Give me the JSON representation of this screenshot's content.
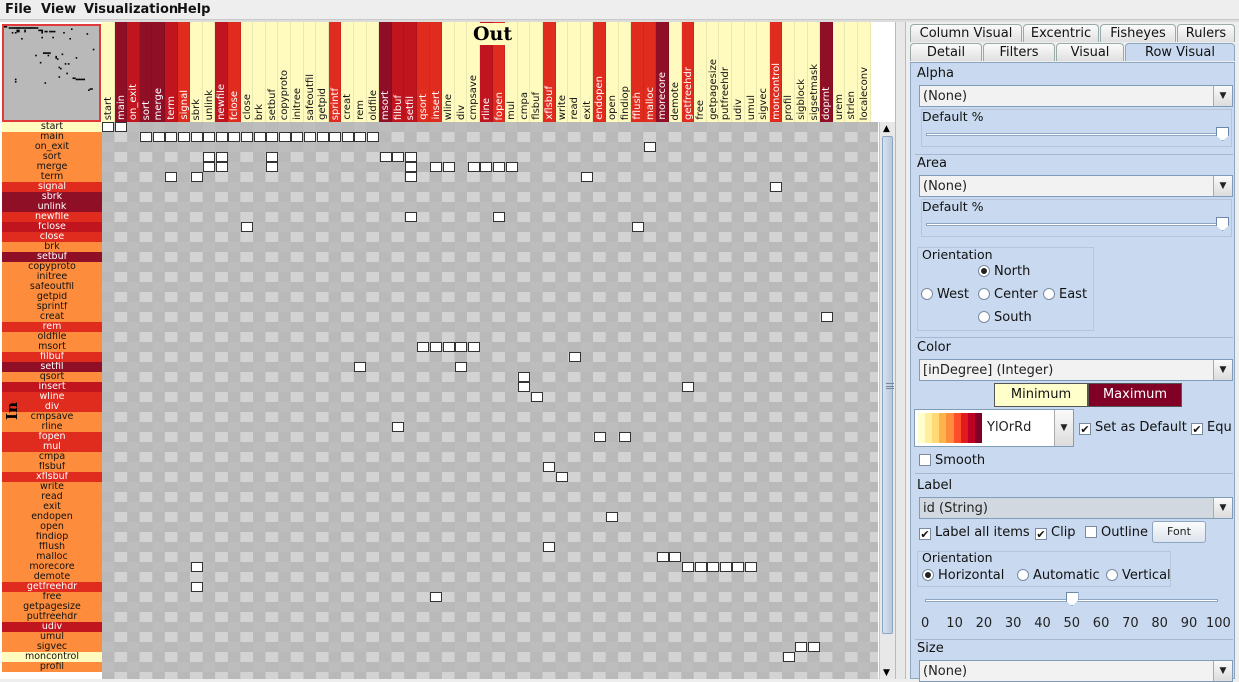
{
  "menu": {
    "items": [
      "File",
      "View",
      "Visualization",
      "Help"
    ]
  },
  "matrix": {
    "out_label": "Out",
    "in_label": "In",
    "columns": [
      {
        "name": "start",
        "color": "#fffbbf"
      },
      {
        "name": "main",
        "color": "#8f0f27"
      },
      {
        "name": "on_exit",
        "color": "#c0141f"
      },
      {
        "name": "sort",
        "color": "#8f0f27"
      },
      {
        "name": "merge",
        "color": "#8f0f27"
      },
      {
        "name": "term",
        "color": "#c0141f"
      },
      {
        "name": "signal",
        "color": "#e02b1f"
      },
      {
        "name": "sbrk",
        "color": "#fffbbf"
      },
      {
        "name": "unlink",
        "color": "#fffbbf"
      },
      {
        "name": "newfile",
        "color": "#c0141f"
      },
      {
        "name": "fclose",
        "color": "#e02b1f"
      },
      {
        "name": "close",
        "color": "#fffbbf"
      },
      {
        "name": "brk",
        "color": "#fffbbf"
      },
      {
        "name": "setbuf",
        "color": "#fffbbf"
      },
      {
        "name": "copyproto",
        "color": "#fffbbf"
      },
      {
        "name": "initree",
        "color": "#fffbbf"
      },
      {
        "name": "safeoutfil",
        "color": "#fffbbf"
      },
      {
        "name": "getpid",
        "color": "#fffbbf"
      },
      {
        "name": "sprintf",
        "color": "#e02b1f"
      },
      {
        "name": "creat",
        "color": "#fffbbf"
      },
      {
        "name": "rem",
        "color": "#fffbbf"
      },
      {
        "name": "oldfile",
        "color": "#fffbbf"
      },
      {
        "name": "msort",
        "color": "#8f0f27"
      },
      {
        "name": "filbuf",
        "color": "#c0141f"
      },
      {
        "name": "setfil",
        "color": "#c0141f"
      },
      {
        "name": "qsort",
        "color": "#e02b1f"
      },
      {
        "name": "insert",
        "color": "#e02b1f"
      },
      {
        "name": "wline",
        "color": "#fffbbf"
      },
      {
        "name": "div",
        "color": "#fffbbf"
      },
      {
        "name": "cmpsave",
        "color": "#fffbbf"
      },
      {
        "name": "rline",
        "color": "#c0141f"
      },
      {
        "name": "fopen",
        "color": "#e02b1f"
      },
      {
        "name": "mul",
        "color": "#fffbbf"
      },
      {
        "name": "cmpa",
        "color": "#fffbbf"
      },
      {
        "name": "flsbuf",
        "color": "#fffbbf"
      },
      {
        "name": "xflsbuf",
        "color": "#e02b1f"
      },
      {
        "name": "write",
        "color": "#fffbbf"
      },
      {
        "name": "read",
        "color": "#fffbbf"
      },
      {
        "name": "exit",
        "color": "#fffbbf"
      },
      {
        "name": "endopen",
        "color": "#e02b1f"
      },
      {
        "name": "open",
        "color": "#fffbbf"
      },
      {
        "name": "findiop",
        "color": "#fffbbf"
      },
      {
        "name": "fflush",
        "color": "#e02b1f"
      },
      {
        "name": "malloc",
        "color": "#e02b1f"
      },
      {
        "name": "morecore",
        "color": "#8f0f27"
      },
      {
        "name": "demote",
        "color": "#fffbbf"
      },
      {
        "name": "getfreehdr",
        "color": "#e02b1f"
      },
      {
        "name": "free",
        "color": "#fffbbf"
      },
      {
        "name": "getpagesize",
        "color": "#fffbbf"
      },
      {
        "name": "putfreehdr",
        "color": "#fffbbf"
      },
      {
        "name": "udiv",
        "color": "#fffbbf"
      },
      {
        "name": "umul",
        "color": "#fffbbf"
      },
      {
        "name": "sigvec",
        "color": "#fffbbf"
      },
      {
        "name": "moncontrol",
        "color": "#e02b1f"
      },
      {
        "name": "profil",
        "color": "#fffbbf"
      },
      {
        "name": "sigblock",
        "color": "#fffbbf"
      },
      {
        "name": "sigsetmask",
        "color": "#fffbbf"
      },
      {
        "name": "doprnt",
        "color": "#8f0f27"
      },
      {
        "name": "urem",
        "color": "#fffbbf"
      },
      {
        "name": "strlen",
        "color": "#fffbbf"
      },
      {
        "name": "localeconv",
        "color": "#fffbbf"
      }
    ],
    "rows": [
      {
        "name": "start",
        "color": "#fffbbf"
      },
      {
        "name": "main",
        "color": "#fd8d3c"
      },
      {
        "name": "on_exit",
        "color": "#fd8d3c"
      },
      {
        "name": "sort",
        "color": "#fd8d3c"
      },
      {
        "name": "merge",
        "color": "#fd8d3c"
      },
      {
        "name": "term",
        "color": "#fd8d3c"
      },
      {
        "name": "signal",
        "color": "#e02b1f"
      },
      {
        "name": "sbrk",
        "color": "#8f0f27"
      },
      {
        "name": "unlink",
        "color": "#8f0f27"
      },
      {
        "name": "newfile",
        "color": "#e02b1f"
      },
      {
        "name": "fclose",
        "color": "#c0141f"
      },
      {
        "name": "close",
        "color": "#e02b1f"
      },
      {
        "name": "brk",
        "color": "#fd8d3c"
      },
      {
        "name": "setbuf",
        "color": "#8f0f27"
      },
      {
        "name": "copyproto",
        "color": "#fd8d3c"
      },
      {
        "name": "initree",
        "color": "#fd8d3c"
      },
      {
        "name": "safeoutfil",
        "color": "#fd8d3c"
      },
      {
        "name": "getpid",
        "color": "#fd8d3c"
      },
      {
        "name": "sprintf",
        "color": "#fd8d3c"
      },
      {
        "name": "creat",
        "color": "#fd8d3c"
      },
      {
        "name": "rem",
        "color": "#e02b1f"
      },
      {
        "name": "oldfile",
        "color": "#fd8d3c"
      },
      {
        "name": "msort",
        "color": "#fd8d3c"
      },
      {
        "name": "filbuf",
        "color": "#e02b1f"
      },
      {
        "name": "setfil",
        "color": "#8f0f27"
      },
      {
        "name": "qsort",
        "color": "#fd8d3c"
      },
      {
        "name": "insert",
        "color": "#c0141f"
      },
      {
        "name": "wline",
        "color": "#e02b1f"
      },
      {
        "name": "div",
        "color": "#e02b1f"
      },
      {
        "name": "cmpsave",
        "color": "#fd8d3c"
      },
      {
        "name": "rline",
        "color": "#fd8d3c"
      },
      {
        "name": "fopen",
        "color": "#e02b1f"
      },
      {
        "name": "mul",
        "color": "#e02b1f"
      },
      {
        "name": "cmpa",
        "color": "#fd8d3c"
      },
      {
        "name": "flsbuf",
        "color": "#fd8d3c"
      },
      {
        "name": "xflsbuf",
        "color": "#e02b1f"
      },
      {
        "name": "write",
        "color": "#fd8d3c"
      },
      {
        "name": "read",
        "color": "#fd8d3c"
      },
      {
        "name": "exit",
        "color": "#fd8d3c"
      },
      {
        "name": "endopen",
        "color": "#fd8d3c"
      },
      {
        "name": "open",
        "color": "#fd8d3c"
      },
      {
        "name": "findiop",
        "color": "#fd8d3c"
      },
      {
        "name": "fflush",
        "color": "#fd8d3c"
      },
      {
        "name": "malloc",
        "color": "#fd8d3c"
      },
      {
        "name": "morecore",
        "color": "#fd8d3c"
      },
      {
        "name": "demote",
        "color": "#fd8d3c"
      },
      {
        "name": "getfreehdr",
        "color": "#e02b1f"
      },
      {
        "name": "free",
        "color": "#fd8d3c"
      },
      {
        "name": "getpagesize",
        "color": "#fd8d3c"
      },
      {
        "name": "putfreehdr",
        "color": "#fd8d3c"
      },
      {
        "name": "udiv",
        "color": "#c0141f"
      },
      {
        "name": "umul",
        "color": "#fd8d3c"
      },
      {
        "name": "sigvec",
        "color": "#fd8d3c"
      },
      {
        "name": "moncontrol",
        "color": "#fffbbf"
      },
      {
        "name": "profil",
        "color": "#fd8d3c"
      }
    ],
    "edges": [
      [
        0,
        0
      ],
      [
        0,
        1
      ],
      [
        1,
        3
      ],
      [
        1,
        4
      ],
      [
        1,
        5
      ],
      [
        1,
        6
      ],
      [
        1,
        7
      ],
      [
        1,
        8
      ],
      [
        1,
        9
      ],
      [
        1,
        10
      ],
      [
        1,
        11
      ],
      [
        1,
        12
      ],
      [
        1,
        13
      ],
      [
        1,
        14
      ],
      [
        1,
        15
      ],
      [
        1,
        16
      ],
      [
        1,
        17
      ],
      [
        1,
        18
      ],
      [
        1,
        19
      ],
      [
        1,
        20
      ],
      [
        1,
        21
      ],
      [
        2,
        43
      ],
      [
        3,
        8
      ],
      [
        3,
        9
      ],
      [
        3,
        13
      ],
      [
        3,
        22
      ],
      [
        3,
        23
      ],
      [
        3,
        24
      ],
      [
        4,
        8
      ],
      [
        4,
        9
      ],
      [
        4,
        13
      ],
      [
        4,
        24
      ],
      [
        4,
        26
      ],
      [
        4,
        27
      ],
      [
        4,
        29
      ],
      [
        4,
        30
      ],
      [
        4,
        31
      ],
      [
        4,
        32
      ],
      [
        5,
        5
      ],
      [
        5,
        7
      ],
      [
        5,
        24
      ],
      [
        5,
        38
      ],
      [
        6,
        53
      ],
      [
        9,
        24
      ],
      [
        9,
        31
      ],
      [
        10,
        11
      ],
      [
        10,
        42
      ],
      [
        19,
        57
      ],
      [
        22,
        25
      ],
      [
        22,
        26
      ],
      [
        22,
        27
      ],
      [
        22,
        28
      ],
      [
        22,
        29
      ],
      [
        23,
        37
      ],
      [
        24,
        20
      ],
      [
        24,
        28
      ],
      [
        25,
        33
      ],
      [
        26,
        33
      ],
      [
        26,
        46
      ],
      [
        27,
        34
      ],
      [
        30,
        23
      ],
      [
        31,
        39
      ],
      [
        31,
        41
      ],
      [
        34,
        35
      ],
      [
        35,
        36
      ],
      [
        39,
        40
      ],
      [
        42,
        35
      ],
      [
        43,
        44
      ],
      [
        43,
        45
      ],
      [
        44,
        7
      ],
      [
        44,
        46
      ],
      [
        44,
        47
      ],
      [
        44,
        48
      ],
      [
        44,
        49
      ],
      [
        44,
        50
      ],
      [
        44,
        51
      ],
      [
        46,
        7
      ],
      [
        47,
        26
      ],
      [
        52,
        55
      ],
      [
        52,
        56
      ],
      [
        53,
        54
      ]
    ]
  },
  "tabs": {
    "row1": [
      "Column Visual",
      "Excentric",
      "Fisheyes",
      "Rulers"
    ],
    "row2": [
      "Detail",
      "Filters",
      "Visual",
      "Row Visual"
    ],
    "active": "Row Visual"
  },
  "panel": {
    "alpha": {
      "title": "Alpha",
      "value": "(None)",
      "default_label": "Default %",
      "default_percent": 100
    },
    "area": {
      "title": "Area",
      "value": "(None)",
      "default_label": "Default %",
      "default_percent": 100
    },
    "orientation": {
      "title": "Orientation",
      "north": "North",
      "west": "West",
      "center": "Center",
      "east": "East",
      "south": "South",
      "selected": "North"
    },
    "color": {
      "title": "Color",
      "value": "[inDegree] (Integer)",
      "minimum": "Minimum",
      "maximum": "Maximum",
      "min_color": "#ffffcc",
      "max_color": "#800026",
      "palette": "YlOrRd",
      "palette_colors": [
        "#ffffcc",
        "#ffeda0",
        "#fed976",
        "#feb24c",
        "#fd8d3c",
        "#fc4e2a",
        "#e31a1c",
        "#bd0026",
        "#800026"
      ],
      "set_default": "Set as Default",
      "equal": "Equ",
      "smooth": "Smooth"
    },
    "label": {
      "title": "Label",
      "value": "id (String)",
      "label_all": "Label all items",
      "clip": "Clip",
      "outline": "Outline",
      "font_button": "Font",
      "orientation_title": "Orientation",
      "horizontal": "Horizontal",
      "automatic": "Automatic",
      "vertical": "Vertical",
      "selected": "Horizontal",
      "slider_value": 50,
      "ticks": [
        "0",
        "10",
        "20",
        "30",
        "40",
        "50",
        "60",
        "70",
        "80",
        "90",
        "100"
      ]
    },
    "size": {
      "title": "Size",
      "value": "(None)"
    }
  }
}
